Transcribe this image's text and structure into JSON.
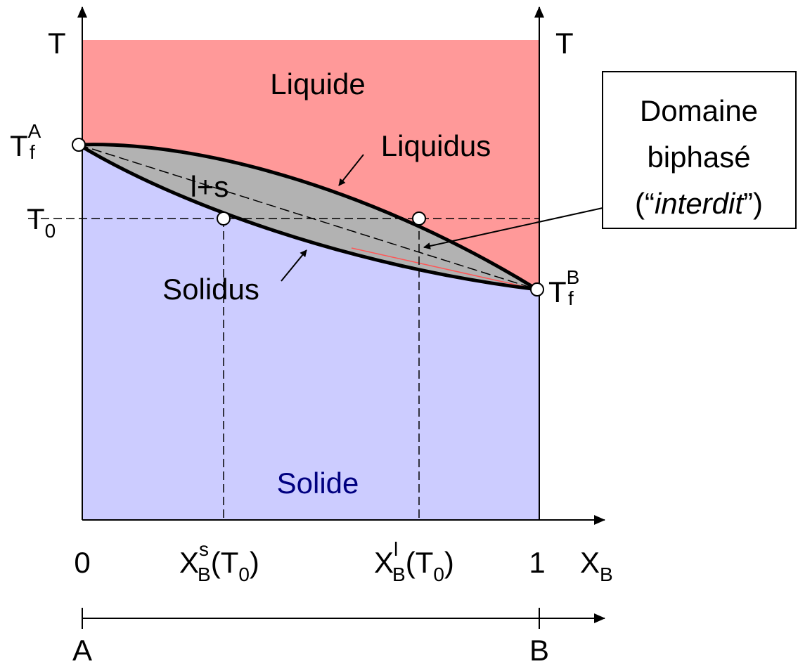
{
  "axes": {
    "left_label": "T",
    "right_label": "T",
    "x_label": {
      "base": "X",
      "sub": "B"
    },
    "x_start": "0",
    "x_end": "1",
    "bottom_start": "A",
    "bottom_end": "B"
  },
  "regions": {
    "liquid": "Liquide",
    "solid": "Solide",
    "two_phase": "l+s"
  },
  "curves": {
    "liquidus": "Liquidus",
    "solidus": "Solidus"
  },
  "points": {
    "tfa": {
      "base": "T",
      "sub": "f",
      "sup": "A"
    },
    "tfb": {
      "base": "T",
      "sub": "f",
      "sup": "B"
    },
    "t0": {
      "base": "T",
      "sub": "0"
    }
  },
  "x_markers": {
    "xs": {
      "base": "X",
      "sub": "B",
      "sup": "s",
      "open": "(",
      "arg_base": "T",
      "arg_sub": "0",
      "close": ")"
    },
    "xl": {
      "base": "X",
      "sub": "B",
      "sup": "l",
      "open": "(",
      "arg_base": "T",
      "arg_sub": "0",
      "close": ")"
    }
  },
  "callout": {
    "line1": "Domaine",
    "line2": "biphasé",
    "line3_open": "(“",
    "line3_italic": "interdit",
    "line3_close": "”)"
  }
}
